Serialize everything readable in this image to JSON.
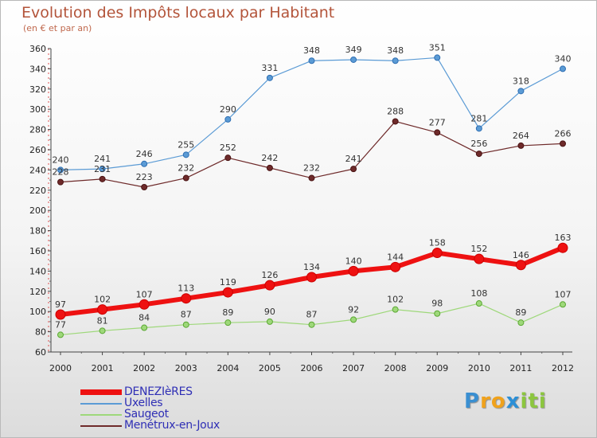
{
  "title": "Evolution des Impôts locaux par Habitant",
  "subtitle": "(en € et par an)",
  "logo": {
    "letters": [
      "P",
      "r",
      "o",
      "x",
      "i",
      "t",
      "i"
    ],
    "colors": [
      "#3a8fd1",
      "#f0a21c",
      "#f0a21c",
      "#2c8fd6",
      "#8cc63f",
      "#8cc63f",
      "#8cc63f"
    ]
  },
  "chart_data": {
    "type": "line",
    "title": "Evolution des Impôts locaux par Habitant",
    "subtitle": "(en € et par an)",
    "x": [
      "2000",
      "2001",
      "2002",
      "2003",
      "2004",
      "2005",
      "2006",
      "2007",
      "2008",
      "2009",
      "2010",
      "2011",
      "2012"
    ],
    "ylim": [
      60,
      360
    ],
    "yticks": [
      60,
      80,
      100,
      120,
      140,
      160,
      180,
      200,
      220,
      240,
      260,
      280,
      300,
      320,
      340,
      360
    ],
    "grid": false,
    "legend_position": "bottom-left",
    "series": [
      {
        "name": "DENEZIèRES",
        "color": "#ee1111",
        "values": [
          97,
          102,
          107,
          113,
          119,
          126,
          134,
          140,
          144,
          158,
          152,
          146,
          163
        ]
      },
      {
        "name": "Uxelles",
        "color": "#5b9bd5",
        "values": [
          240,
          241,
          246,
          255,
          290,
          331,
          348,
          349,
          348,
          351,
          281,
          318,
          340
        ]
      },
      {
        "name": "Saugeot",
        "color": "#9ed87a",
        "values": [
          77,
          81,
          84,
          87,
          89,
          90,
          87,
          92,
          102,
          98,
          108,
          89,
          107
        ]
      },
      {
        "name": "Menétrux-en-Joux",
        "color": "#6e2a2a",
        "values": [
          228,
          231,
          223,
          232,
          252,
          242,
          232,
          241,
          288,
          277,
          256,
          264,
          266
        ]
      }
    ]
  }
}
